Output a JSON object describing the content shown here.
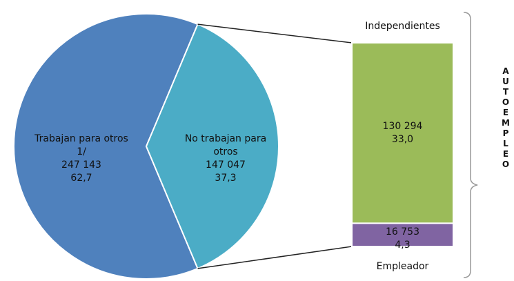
{
  "chart_data": [
    {
      "type": "pie",
      "labels": [
        "Trabajan para otros 1/",
        "No trabajan para otros"
      ],
      "values": [
        247143,
        147047
      ],
      "value_labels": [
        "247 143",
        "147 047"
      ],
      "percentages": [
        62.7,
        37.3
      ],
      "percentage_labels": [
        "62,7",
        "37,3"
      ],
      "colors": [
        "#4f81bd",
        "#4bacc6"
      ]
    },
    {
      "type": "bar",
      "categories": [
        "Independientes",
        "Empleador"
      ],
      "values": [
        130294,
        16753
      ],
      "value_labels": [
        "130 294",
        "16 753"
      ],
      "percentages": [
        33.0,
        4.3
      ],
      "percentage_labels": [
        "33,0",
        "4,3"
      ],
      "colors": [
        "#9bbb59",
        "#8064a2"
      ],
      "bracket_label": "AUTOEMPLEO"
    }
  ]
}
